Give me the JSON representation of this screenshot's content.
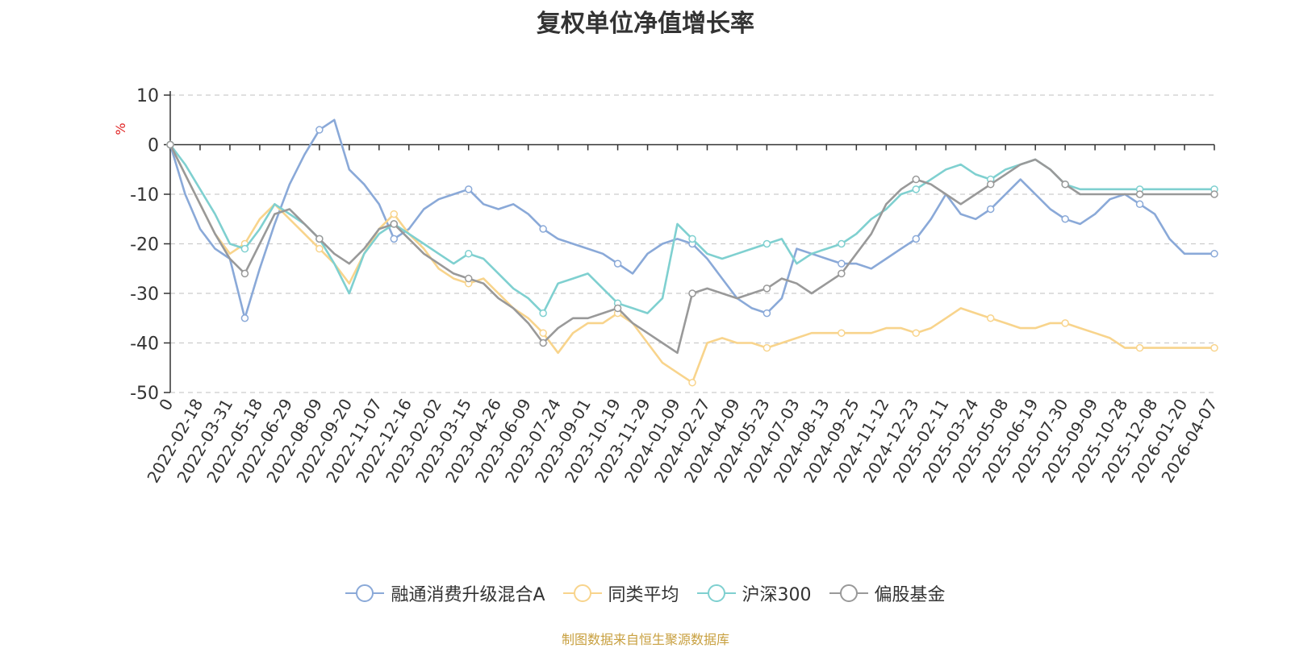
{
  "chart_data": {
    "type": "line",
    "title": "复权单位净值增长率",
    "ylabel": "%",
    "ylim": [
      -50,
      10
    ],
    "yticks": [
      10,
      0,
      -10,
      -20,
      -30,
      -40,
      -50
    ],
    "grid": true,
    "legend_position": "bottom",
    "x_tick_labels": [
      "0",
      "2022-02-18",
      "2022-03-31",
      "2022-05-18",
      "2022-06-29",
      "2022-08-09",
      "2022-09-20",
      "2022-11-07",
      "2022-12-16",
      "2023-02-02",
      "2023-03-15",
      "2023-04-26",
      "2023-06-09",
      "2023-07-24",
      "2023-09-01",
      "2023-10-19",
      "2023-11-29",
      "2024-01-09",
      "2024-02-27",
      "2024-04-09",
      "2024-05-23",
      "2024-07-03",
      "2024-08-13",
      "2024-09-25",
      "2024-11-12",
      "2024-12-23",
      "2025-02-11",
      "2025-03-24",
      "2025-05-08",
      "2025-06-19",
      "2025-07-30",
      "2025-09-09",
      "2025-10-28",
      "2025-12-08",
      "2026-01-20",
      "2026-04-07"
    ],
    "x_index": [
      0,
      1,
      2,
      3,
      4,
      5,
      6,
      7,
      8,
      9,
      10,
      11,
      12,
      13,
      14,
      15,
      16,
      17,
      18,
      19,
      20,
      21,
      22,
      23,
      24,
      25,
      26,
      27,
      28,
      29,
      30,
      31,
      32,
      33,
      34,
      35,
      36,
      37,
      38,
      39,
      40,
      41,
      42,
      43,
      44,
      45,
      46,
      47,
      48,
      49,
      50,
      51,
      52,
      53,
      54,
      55,
      56,
      57,
      58,
      59,
      60,
      61,
      62,
      63,
      64,
      65,
      66,
      67,
      68,
      69,
      70
    ],
    "series": [
      {
        "name": "融通消费升级混合A",
        "color": "#8aa9d8",
        "values": [
          0,
          -10,
          -17,
          -21,
          -23,
          -35,
          -25,
          -16,
          -8,
          -2,
          3,
          5,
          -5,
          -8,
          -12,
          -19,
          -17,
          -13,
          -11,
          -10,
          -9,
          -12,
          -13,
          -12,
          -14,
          -17,
          -19,
          -20,
          -21,
          -22,
          -24,
          -26,
          -22,
          -20,
          -19,
          -20,
          -23,
          -27,
          -31,
          -33,
          -34,
          -31,
          -21,
          -22,
          -23,
          -24,
          -24,
          -25,
          -23,
          -21,
          -19,
          -15,
          -10,
          -14,
          -15,
          -13,
          -10,
          -7,
          -10,
          -13,
          -15,
          -16,
          -14,
          -11,
          -10,
          -12,
          -14,
          -19,
          -22,
          -22,
          -22
        ]
      },
      {
        "name": "同类平均",
        "color": "#f8d48c",
        "values": [
          0,
          -6,
          -12,
          -18,
          -22,
          -20,
          -15,
          -12,
          -15,
          -18,
          -21,
          -24,
          -28,
          -22,
          -17,
          -14,
          -18,
          -21,
          -25,
          -27,
          -28,
          -27,
          -30,
          -33,
          -35,
          -38,
          -42,
          -38,
          -36,
          -36,
          -34,
          -36,
          -40,
          -44,
          -46,
          -48,
          -40,
          -39,
          -40,
          -40,
          -41,
          -40,
          -39,
          -38,
          -38,
          -38,
          -38,
          -38,
          -37,
          -37,
          -38,
          -37,
          -35,
          -33,
          -34,
          -35,
          -36,
          -37,
          -37,
          -36,
          -36,
          -37,
          -38,
          -39,
          -41,
          -41,
          -41,
          -41,
          -41,
          -41,
          -41
        ]
      },
      {
        "name": "沪深300",
        "color": "#7fd0d0",
        "values": [
          0,
          -4,
          -9,
          -14,
          -20,
          -21,
          -17,
          -12,
          -14,
          -16,
          -19,
          -24,
          -30,
          -22,
          -18,
          -16,
          -18,
          -20,
          -22,
          -24,
          -22,
          -23,
          -26,
          -29,
          -31,
          -34,
          -28,
          -27,
          -26,
          -29,
          -32,
          -33,
          -34,
          -31,
          -16,
          -19,
          -22,
          -23,
          -22,
          -21,
          -20,
          -19,
          -24,
          -22,
          -21,
          -20,
          -18,
          -15,
          -13,
          -10,
          -9,
          -7,
          -5,
          -4,
          -6,
          -7,
          -5,
          -4,
          -3,
          -5,
          -8,
          -9,
          -9,
          -9,
          -9,
          -9,
          -9,
          -9,
          -9,
          -9,
          -9
        ]
      },
      {
        "name": "偏股基金",
        "color": "#999999",
        "values": [
          0,
          -6,
          -12,
          -18,
          -23,
          -26,
          -20,
          -14,
          -13,
          -16,
          -19,
          -22,
          -24,
          -21,
          -17,
          -16,
          -19,
          -22,
          -24,
          -26,
          -27,
          -28,
          -31,
          -33,
          -36,
          -40,
          -37,
          -35,
          -35,
          -34,
          -33,
          -36,
          -38,
          -40,
          -42,
          -30,
          -29,
          -30,
          -31,
          -30,
          -29,
          -27,
          -28,
          -30,
          -28,
          -26,
          -22,
          -18,
          -12,
          -9,
          -7,
          -8,
          -10,
          -12,
          -10,
          -8,
          -6,
          -4,
          -3,
          -5,
          -8,
          -10,
          -10,
          -10,
          -10,
          -10,
          -10,
          -10,
          -10,
          -10,
          -10
        ]
      }
    ]
  },
  "legend": [
    {
      "label": "融通消费升级混合A",
      "color": "#8aa9d8"
    },
    {
      "label": "同类平均",
      "color": "#f8d48c"
    },
    {
      "label": "沪深300",
      "color": "#7fd0d0"
    },
    {
      "label": "偏股基金",
      "color": "#999999"
    }
  ],
  "source_text": "制图数据来自恒生聚源数据库"
}
